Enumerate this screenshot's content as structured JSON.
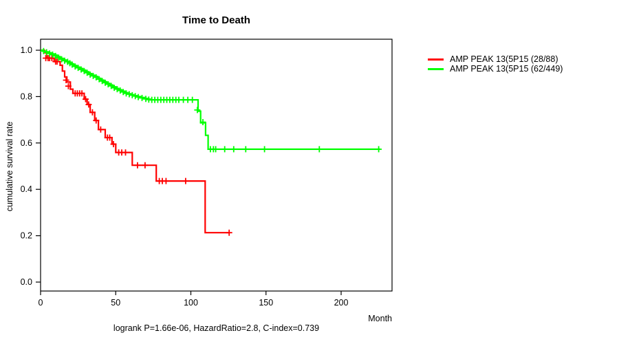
{
  "title": "Time to Death",
  "y_axis_label": "cumulative survival rate",
  "x_axis_label": "Month",
  "annotation": "logrank P=1.66e-06, HazardRatio=2.8, C-index=0.739",
  "legend": {
    "items": [
      {
        "label": "AMP PEAK 13(5P15 (28/88)",
        "color": "#ff0000"
      },
      {
        "label": "AMP PEAK 13(5P15 (62/449)",
        "color": "#00ff00"
      }
    ]
  },
  "chart_data": {
    "type": "line",
    "subtype": "kaplan-meier-step",
    "title": "Time to Death",
    "xlabel": "Month",
    "ylabel": "cumulative survival rate",
    "xlim": [
      0,
      234
    ],
    "ylim": [
      0.0,
      1.0
    ],
    "x_ticks": [
      0,
      50,
      100,
      150,
      200
    ],
    "y_ticks": [
      0.0,
      0.2,
      0.4,
      0.6,
      0.8,
      1.0
    ],
    "grid": false,
    "legend_position": "right-outside",
    "axis_color": "#000000",
    "series": [
      {
        "name": "AMP PEAK 13(5P15 (28/88)",
        "color": "#ff0000",
        "end_time": 125.5,
        "steps": [
          [
            0,
            1.0
          ],
          [
            2.5,
            0.989
          ],
          [
            4,
            0.966
          ],
          [
            9,
            0.951
          ],
          [
            13,
            0.935
          ],
          [
            14.5,
            0.91
          ],
          [
            16,
            0.885
          ],
          [
            17.5,
            0.863
          ],
          [
            19.8,
            0.832
          ],
          [
            21.5,
            0.814
          ],
          [
            29,
            0.789
          ],
          [
            31,
            0.766
          ],
          [
            33,
            0.732
          ],
          [
            36,
            0.697
          ],
          [
            38.5,
            0.658
          ],
          [
            43,
            0.623
          ],
          [
            47.5,
            0.595
          ],
          [
            50,
            0.559
          ],
          [
            61,
            0.504
          ],
          [
            77,
            0.436
          ],
          [
            109.5,
            0.213
          ]
        ],
        "censor_marks": [
          [
            3.5,
            0.966
          ],
          [
            5,
            0.966
          ],
          [
            6,
            0.966
          ],
          [
            7.5,
            0.966
          ],
          [
            10,
            0.951
          ],
          [
            11,
            0.951
          ],
          [
            17,
            0.871
          ],
          [
            18.5,
            0.845
          ],
          [
            23,
            0.814
          ],
          [
            24.5,
            0.814
          ],
          [
            26,
            0.814
          ],
          [
            27.5,
            0.814
          ],
          [
            30,
            0.789
          ],
          [
            32,
            0.766
          ],
          [
            34.5,
            0.732
          ],
          [
            37,
            0.697
          ],
          [
            40,
            0.658
          ],
          [
            44.5,
            0.623
          ],
          [
            46,
            0.623
          ],
          [
            48.5,
            0.595
          ],
          [
            52,
            0.559
          ],
          [
            54,
            0.559
          ],
          [
            56.5,
            0.559
          ],
          [
            64.5,
            0.504
          ],
          [
            69.5,
            0.504
          ],
          [
            79,
            0.436
          ],
          [
            81,
            0.436
          ],
          [
            83.5,
            0.436
          ],
          [
            96.5,
            0.436
          ],
          [
            125.5,
            0.213
          ]
        ]
      },
      {
        "name": "AMP PEAK 13(5P15 (62/449)",
        "color": "#00ff00",
        "end_time": 226,
        "steps": [
          [
            0,
            1.0
          ],
          [
            1.5,
            0.996
          ],
          [
            3,
            0.993
          ],
          [
            5,
            0.989
          ],
          [
            7,
            0.984
          ],
          [
            9,
            0.979
          ],
          [
            11,
            0.972
          ],
          [
            13,
            0.965
          ],
          [
            15,
            0.958
          ],
          [
            17,
            0.952
          ],
          [
            18.5,
            0.948
          ],
          [
            20,
            0.941
          ],
          [
            22,
            0.934
          ],
          [
            24,
            0.927
          ],
          [
            26,
            0.921
          ],
          [
            28,
            0.914
          ],
          [
            30,
            0.907
          ],
          [
            32,
            0.899
          ],
          [
            34,
            0.892
          ],
          [
            36,
            0.887
          ],
          [
            38,
            0.879
          ],
          [
            40,
            0.871
          ],
          [
            42,
            0.864
          ],
          [
            44,
            0.857
          ],
          [
            46,
            0.85
          ],
          [
            48,
            0.842
          ],
          [
            50,
            0.835
          ],
          [
            52,
            0.829
          ],
          [
            54,
            0.823
          ],
          [
            56,
            0.817
          ],
          [
            58,
            0.812
          ],
          [
            60,
            0.808
          ],
          [
            62,
            0.804
          ],
          [
            64,
            0.8
          ],
          [
            66.5,
            0.796
          ],
          [
            69,
            0.792
          ],
          [
            71.5,
            0.789
          ],
          [
            73,
            0.786
          ],
          [
            104.8,
            0.737
          ],
          [
            106.5,
            0.687
          ],
          [
            109.8,
            0.633
          ],
          [
            111.5,
            0.573
          ]
        ],
        "censor_marks": [
          [
            2,
            0.996
          ],
          [
            4,
            0.991
          ],
          [
            6,
            0.986
          ],
          [
            8,
            0.981
          ],
          [
            10,
            0.975
          ],
          [
            12,
            0.968
          ],
          [
            14,
            0.961
          ],
          [
            16,
            0.955
          ],
          [
            18,
            0.95
          ],
          [
            19.5,
            0.944
          ],
          [
            21,
            0.938
          ],
          [
            23,
            0.93
          ],
          [
            25,
            0.924
          ],
          [
            27,
            0.917
          ],
          [
            29,
            0.91
          ],
          [
            31,
            0.903
          ],
          [
            33,
            0.895
          ],
          [
            35,
            0.889
          ],
          [
            37,
            0.883
          ],
          [
            39,
            0.875
          ],
          [
            41,
            0.867
          ],
          [
            43,
            0.86
          ],
          [
            45,
            0.853
          ],
          [
            47,
            0.846
          ],
          [
            49,
            0.838
          ],
          [
            51,
            0.832
          ],
          [
            53,
            0.826
          ],
          [
            55,
            0.82
          ],
          [
            57,
            0.814
          ],
          [
            59,
            0.81
          ],
          [
            61,
            0.806
          ],
          [
            63,
            0.802
          ],
          [
            65,
            0.798
          ],
          [
            67.5,
            0.794
          ],
          [
            70,
            0.79
          ],
          [
            72,
            0.787
          ],
          [
            74,
            0.786
          ],
          [
            76,
            0.786
          ],
          [
            78,
            0.786
          ],
          [
            80,
            0.786
          ],
          [
            82,
            0.786
          ],
          [
            84,
            0.786
          ],
          [
            86,
            0.786
          ],
          [
            88,
            0.786
          ],
          [
            90,
            0.786
          ],
          [
            92,
            0.786
          ],
          [
            95,
            0.786
          ],
          [
            98,
            0.786
          ],
          [
            101,
            0.786
          ],
          [
            104.3,
            0.742
          ],
          [
            108,
            0.69
          ],
          [
            113,
            0.573
          ],
          [
            115,
            0.573
          ],
          [
            116.5,
            0.573
          ],
          [
            122.5,
            0.573
          ],
          [
            128.5,
            0.573
          ],
          [
            136.5,
            0.573
          ],
          [
            149,
            0.573
          ],
          [
            185.5,
            0.573
          ],
          [
            225,
            0.573
          ]
        ]
      }
    ]
  }
}
